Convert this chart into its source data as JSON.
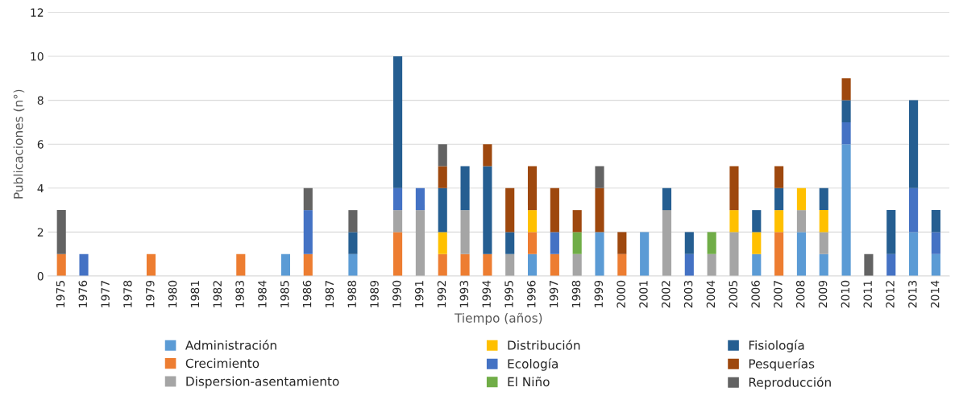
{
  "chart_data": {
    "type": "bar",
    "stacked": true,
    "xlabel": "Tiempo (años)",
    "ylabel": "Publicaciones (n°)",
    "categories": [
      "1975",
      "1976",
      "1977",
      "1978",
      "1979",
      "1980",
      "1981",
      "1982",
      "1983",
      "1984",
      "1985",
      "1986",
      "1987",
      "1988",
      "1989",
      "1990",
      "1991",
      "1992",
      "1993",
      "1994",
      "1995",
      "1996",
      "1997",
      "1998",
      "1999",
      "2000",
      "2001",
      "2002",
      "2003",
      "2004",
      "2005",
      "2006",
      "2007",
      "2008",
      "2009",
      "2010",
      "2011",
      "2012",
      "2013",
      "2014"
    ],
    "series": [
      {
        "name": "Administración",
        "color": "#5b9bd5",
        "values": [
          0,
          0,
          0,
          0,
          0,
          0,
          0,
          0,
          0,
          0,
          1,
          0,
          0,
          1,
          0,
          0,
          0,
          0,
          0,
          0,
          0,
          1,
          0,
          0,
          2,
          0,
          2,
          0,
          0,
          0,
          0,
          1,
          0,
          2,
          1,
          6,
          0,
          0,
          2,
          1
        ]
      },
      {
        "name": "Crecimiento",
        "color": "#ed7d31",
        "values": [
          1,
          0,
          0,
          0,
          1,
          0,
          0,
          0,
          1,
          0,
          0,
          1,
          0,
          0,
          0,
          2,
          0,
          1,
          1,
          1,
          0,
          1,
          1,
          0,
          0,
          1,
          0,
          0,
          0,
          0,
          0,
          0,
          2,
          0,
          0,
          0,
          0,
          0,
          0,
          0
        ]
      },
      {
        "name": "Dispersion-asentamiento",
        "color": "#a5a5a5",
        "values": [
          0,
          0,
          0,
          0,
          0,
          0,
          0,
          0,
          0,
          0,
          0,
          0,
          0,
          0,
          0,
          1,
          3,
          0,
          2,
          0,
          1,
          0,
          0,
          1,
          0,
          0,
          0,
          3,
          0,
          1,
          2,
          0,
          0,
          1,
          1,
          0,
          0,
          0,
          0,
          0
        ]
      },
      {
        "name": "Distribución",
        "color": "#ffc000",
        "values": [
          0,
          0,
          0,
          0,
          0,
          0,
          0,
          0,
          0,
          0,
          0,
          0,
          0,
          0,
          0,
          0,
          0,
          1,
          0,
          0,
          0,
          1,
          0,
          0,
          0,
          0,
          0,
          0,
          0,
          0,
          1,
          1,
          1,
          1,
          1,
          0,
          0,
          0,
          0,
          0
        ]
      },
      {
        "name": "Ecología",
        "color": "#4472c4",
        "values": [
          0,
          1,
          0,
          0,
          0,
          0,
          0,
          0,
          0,
          0,
          0,
          2,
          0,
          0,
          0,
          1,
          1,
          0,
          0,
          0,
          0,
          0,
          1,
          0,
          0,
          0,
          0,
          0,
          1,
          0,
          0,
          0,
          0,
          0,
          0,
          1,
          0,
          1,
          2,
          1
        ]
      },
      {
        "name": "El Niño",
        "color": "#70ad47",
        "values": [
          0,
          0,
          0,
          0,
          0,
          0,
          0,
          0,
          0,
          0,
          0,
          0,
          0,
          0,
          0,
          0,
          0,
          0,
          0,
          0,
          0,
          0,
          0,
          1,
          0,
          0,
          0,
          0,
          0,
          1,
          0,
          0,
          0,
          0,
          0,
          0,
          0,
          0,
          0,
          0
        ]
      },
      {
        "name": "Fisiología",
        "color": "#255e91",
        "values": [
          0,
          0,
          0,
          0,
          0,
          0,
          0,
          0,
          0,
          0,
          0,
          0,
          0,
          1,
          0,
          6,
          0,
          2,
          2,
          4,
          1,
          0,
          0,
          0,
          0,
          0,
          0,
          1,
          1,
          0,
          0,
          1,
          1,
          0,
          1,
          1,
          0,
          2,
          4,
          1
        ]
      },
      {
        "name": "Pesquerías",
        "color": "#9e480e",
        "values": [
          0,
          0,
          0,
          0,
          0,
          0,
          0,
          0,
          0,
          0,
          0,
          0,
          0,
          0,
          0,
          0,
          0,
          1,
          0,
          1,
          2,
          2,
          2,
          1,
          2,
          1,
          0,
          0,
          0,
          0,
          2,
          0,
          1,
          0,
          0,
          1,
          0,
          0,
          0,
          0
        ]
      },
      {
        "name": "Reproducción",
        "color": "#636363",
        "values": [
          2,
          0,
          0,
          0,
          0,
          0,
          0,
          0,
          0,
          0,
          0,
          1,
          0,
          1,
          0,
          0,
          0,
          1,
          0,
          0,
          0,
          0,
          0,
          0,
          1,
          0,
          0,
          0,
          0,
          0,
          0,
          0,
          0,
          0,
          0,
          0,
          1,
          0,
          0,
          0
        ]
      }
    ],
    "ylim": [
      0,
      12
    ],
    "yticks": [
      0,
      2,
      4,
      6,
      8,
      10,
      12
    ],
    "grid": "y",
    "legend": "bottom"
  }
}
